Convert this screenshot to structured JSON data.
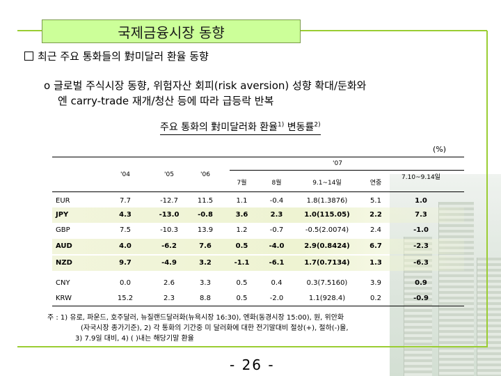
{
  "title": "국제금융시장 동향",
  "heading": "최근 주요 통화들의 對미달러 환율 동향",
  "bullet": {
    "marker": "o",
    "line1": "글로벌 주식시장 동향, 위험자산 회피(risk aversion) 성향 확대/둔화와",
    "line2": "엔 carry-trade 재개/청산 등에 따라 급등락 반복"
  },
  "table": {
    "title": "주요 통화의 對미달러화 환율",
    "title_sup1": "1)",
    "title_mid": " 변동률",
    "title_sup2": "2)",
    "unit": "(%)",
    "year_group": "'07",
    "columns": [
      "'04",
      "'05",
      "'06",
      "7월",
      "8월",
      "9.1~14일",
      "연중",
      "7.10~9.14일"
    ],
    "rows": [
      {
        "name": "EUR",
        "bold": false,
        "cells": [
          "7.7",
          "-12.7",
          "11.5",
          "1.1",
          "-0.4",
          "1.8(1.3876)",
          "5.1",
          "1.0"
        ]
      },
      {
        "name": "JPY",
        "bold": true,
        "cells": [
          "4.3",
          "-13.0",
          "-0.8",
          "3.6",
          "2.3",
          "1.0(115.05)",
          "2.2",
          "7.3"
        ]
      },
      {
        "name": "GBP",
        "bold": false,
        "cells": [
          "7.5",
          "-10.3",
          "13.9",
          "1.2",
          "-0.7",
          "-0.5(2.0074)",
          "2.4",
          "-1.0"
        ]
      },
      {
        "name": "AUD",
        "bold": true,
        "cells": [
          "4.0",
          "-6.2",
          "7.6",
          "0.5",
          "-4.0",
          "2.9(0.8424)",
          "6.7",
          "-2.3"
        ]
      },
      {
        "name": "NZD",
        "bold": true,
        "cells": [
          "9.7",
          "-4.9",
          "3.2",
          "-1.1",
          "-6.1",
          "1.7(0.7134)",
          "1.3",
          "-6.3"
        ]
      },
      {
        "name": "CNY",
        "bold": false,
        "cells": [
          "0.0",
          "2.6",
          "3.3",
          "0.5",
          "0.4",
          "0.3(7.5160)",
          "3.9",
          "0.9"
        ]
      },
      {
        "name": "KRW",
        "bold": false,
        "cells": [
          "15.2",
          "2.3",
          "8.8",
          "0.5",
          "-2.0",
          "1.1(928.4)",
          "0.2",
          "-0.9"
        ]
      }
    ]
  },
  "note": {
    "line1": "주 : 1) 유로, 파운드, 호주달러, 뉴질랜드달러화(뉴욕시장 16:30), 엔화(동경시장 15:00), 원, 위안화",
    "line2": "(자국시장 종가기준), 2) 각 통화의 기간중 미 달러화에 대한 전기말대비 절상(+), 절하(-)율,",
    "line3": "3) 7.9일 대비, 4) (  )내는 해당기말 환율"
  },
  "page_number": "- 26 -"
}
